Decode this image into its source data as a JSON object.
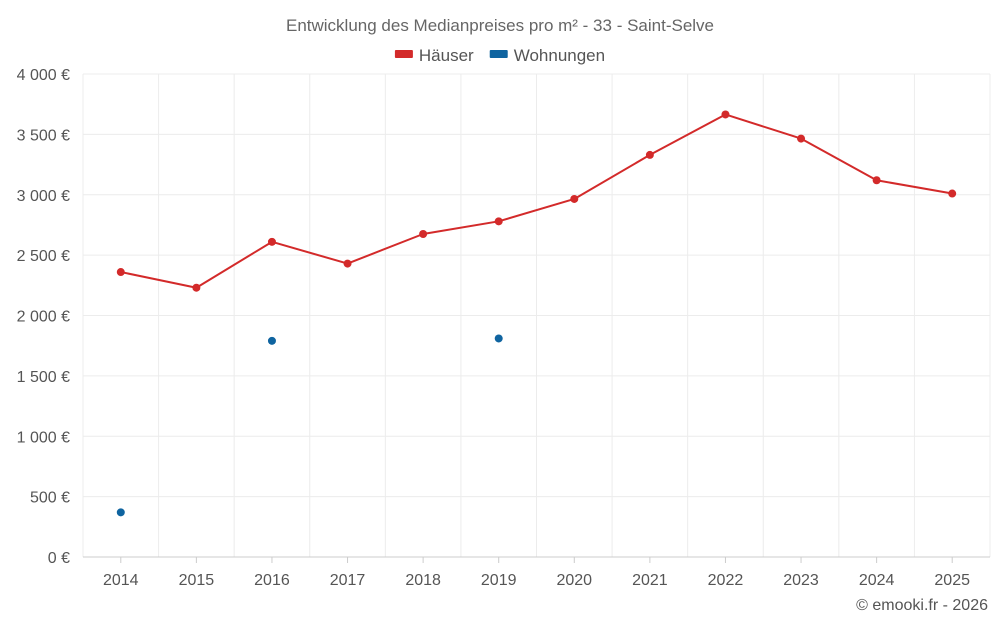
{
  "chart_data": {
    "type": "line",
    "title": "Entwicklung des Medianpreises pro m² - 33 - Saint-Selve",
    "categories": [
      "2014",
      "2015",
      "2016",
      "2017",
      "2018",
      "2019",
      "2020",
      "2021",
      "2022",
      "2023",
      "2024",
      "2025"
    ],
    "series": [
      {
        "name": "Häuser",
        "color": "#d32a2a",
        "style": "line",
        "values": [
          2360,
          2230,
          2610,
          2430,
          2675,
          2780,
          2965,
          3330,
          3665,
          3465,
          3120,
          3010
        ]
      },
      {
        "name": "Wohnungen",
        "color": "#0f64a0",
        "style": "points",
        "values": [
          370,
          null,
          1790,
          null,
          null,
          1810,
          null,
          null,
          null,
          null,
          null,
          null
        ]
      }
    ],
    "y_ticks": [
      0,
      500,
      1000,
      1500,
      2000,
      2500,
      3000,
      3500,
      4000
    ],
    "y_tick_labels": [
      "0 €",
      "500 €",
      "1 000 €",
      "1 500 €",
      "2 000 €",
      "2 500 €",
      "3 000 €",
      "3 500 €",
      "4 000 €"
    ],
    "ylim": [
      0,
      4000
    ],
    "xlabel": "",
    "ylabel": "",
    "grid": true,
    "legend_position": "top-center"
  },
  "credit": "© emooki.fr - 2026"
}
